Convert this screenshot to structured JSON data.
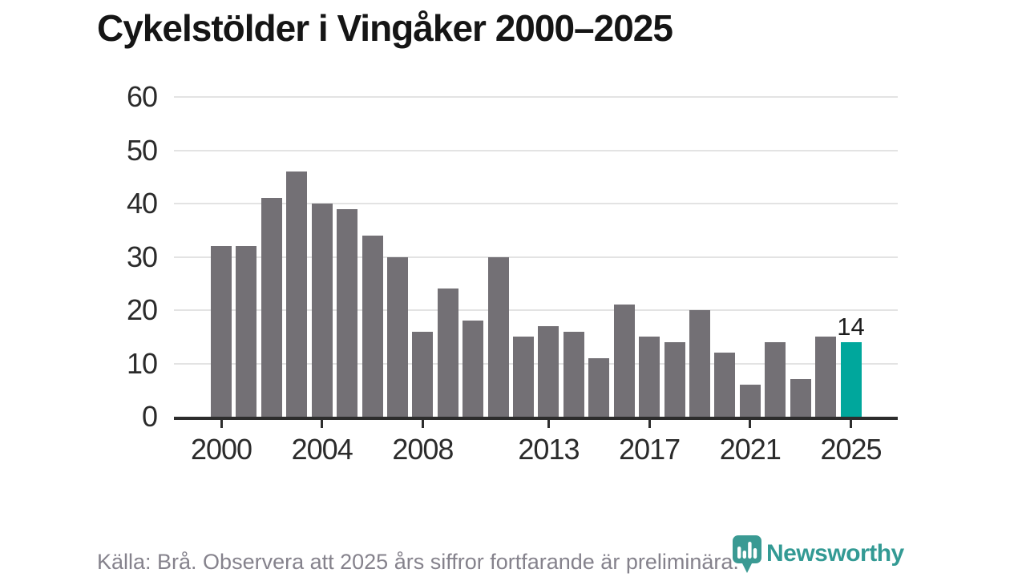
{
  "title": "Cykelstölder i Vingåker 2000–2025",
  "footer": {
    "source_note": "Källa: Brå. Observera att 2025 års siffror fortfarande är preliminära."
  },
  "branding": {
    "wordmark": "Newsworthy",
    "logo_icon": "newsworthy-bubble-bar-chart-icon"
  },
  "colors": {
    "bar_default": "#737075",
    "bar_highlight": "#00a79c",
    "gridline": "#e3e3e3",
    "axis": "#2d2d2d",
    "tick_label": "#2b2b2b",
    "title_text": "#151515",
    "footer_text": "#85828c",
    "brand_teal": "#339a94"
  },
  "chart_data": {
    "type": "bar",
    "title": "Cykelstölder i Vingåker 2000–2025",
    "xlabel": "",
    "ylabel": "",
    "x": [
      2000,
      2001,
      2002,
      2003,
      2004,
      2005,
      2006,
      2007,
      2008,
      2009,
      2010,
      2011,
      2012,
      2013,
      2014,
      2015,
      2016,
      2017,
      2018,
      2019,
      2020,
      2021,
      2022,
      2023,
      2024,
      2025
    ],
    "values": [
      32,
      32,
      41,
      46,
      40,
      39,
      34,
      30,
      16,
      24,
      18,
      30,
      15,
      17,
      16,
      11,
      21,
      15,
      14,
      20,
      12,
      6,
      14,
      7,
      15,
      14
    ],
    "highlight_index": 25,
    "highlight_value_label": "14",
    "ylim": [
      0,
      60
    ],
    "yticks": [
      0,
      10,
      20,
      30,
      40,
      50,
      60
    ],
    "xticks": [
      2000,
      2004,
      2008,
      2013,
      2017,
      2021,
      2025
    ],
    "xtick_labels": [
      "2000",
      "2004",
      "2008",
      "2013",
      "2017",
      "2021",
      "2025"
    ],
    "grid": true,
    "legend_position": "none"
  }
}
